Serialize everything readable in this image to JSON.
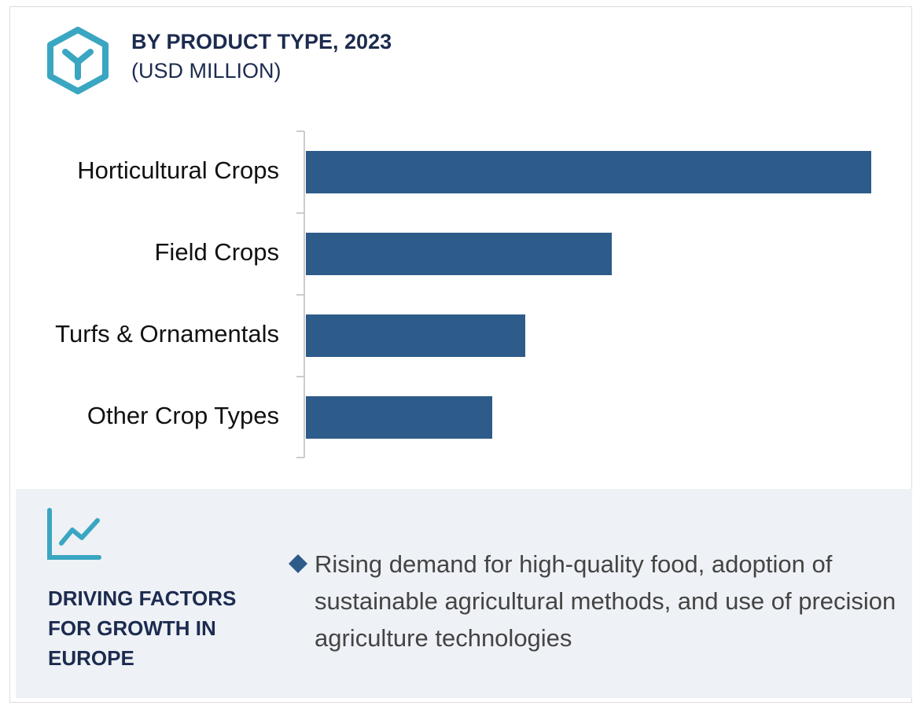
{
  "header": {
    "title": "BY PRODUCT TYPE, 2023",
    "subtitle": "(USD MILLION)"
  },
  "chart_data": {
    "type": "bar",
    "orientation": "horizontal",
    "categories": [
      "Horticultural Crops",
      "Field Crops",
      "Turfs & Ornamentals",
      "Other Crop Types"
    ],
    "values": [
      719,
      389,
      279,
      237
    ],
    "color": "#2d5b8a"
  },
  "footer": {
    "heading": "DRIVING FACTORS FOR GROWTH IN EUROPE",
    "bullet": "Rising demand for high-quality food, adoption of sustainable agricultural methods, and use of precision agriculture technologies"
  }
}
